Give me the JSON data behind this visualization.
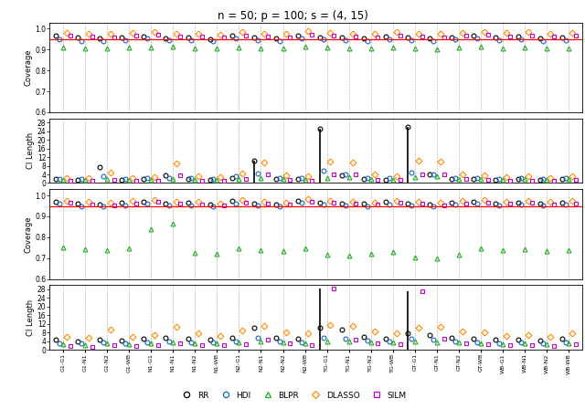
{
  "title": "n = 50; p = 100; s = (4, 15)",
  "xlabels": [
    "G1-G1",
    "G1-N1",
    "G1-N2",
    "G1-WB",
    "N1-G1",
    "N1-N1",
    "N1-N2",
    "N1-WB",
    "N2-G1",
    "N2-N1",
    "N2-N2",
    "N2-WB",
    "TG-G1",
    "TG-N1",
    "TG-N2",
    "TG-WB",
    "GT-G1",
    "GT-N1",
    "GT-N2",
    "GT-WB",
    "WB-G1",
    "WB-N1",
    "WB-N2",
    "WB-WB"
  ],
  "methods": [
    "RR",
    "HDI",
    "BLPR",
    "DLASSO",
    "SILM"
  ],
  "colors": [
    "black",
    "#1566c0",
    "#22aa22",
    "#ff8c00",
    "#cc00cc"
  ],
  "markers": [
    "o",
    "o",
    "^",
    "D",
    "s"
  ],
  "ref_line": 0.95,
  "coverage_ylim": [
    0.6,
    1.03
  ],
  "coverage_yticks": [
    0.6,
    0.7,
    0.8,
    0.9,
    1.0
  ],
  "cilength_ylim": [
    0,
    30
  ],
  "cilength_yticks": [
    0,
    4,
    8,
    12,
    16,
    20,
    24,
    28
  ],
  "panel1_coverage_RR": [
    0.966,
    0.957,
    0.952,
    0.958,
    0.962,
    0.955,
    0.96,
    0.951,
    0.965,
    0.958,
    0.952,
    0.968,
    0.96,
    0.957,
    0.955,
    0.962,
    0.958,
    0.953,
    0.96,
    0.965,
    0.958,
    0.962,
    0.955,
    0.96
  ],
  "panel1_coverage_HDI": [
    0.95,
    0.943,
    0.94,
    0.945,
    0.953,
    0.947,
    0.945,
    0.94,
    0.952,
    0.945,
    0.941,
    0.955,
    0.948,
    0.944,
    0.942,
    0.95,
    0.946,
    0.942,
    0.948,
    0.953,
    0.946,
    0.95,
    0.943,
    0.947
  ],
  "panel1_coverage_BLPR": [
    0.91,
    0.908,
    0.905,
    0.912,
    0.91,
    0.913,
    0.908,
    0.905,
    0.912,
    0.907,
    0.904,
    0.915,
    0.91,
    0.907,
    0.905,
    0.912,
    0.907,
    0.903,
    0.91,
    0.913,
    0.907,
    0.91,
    0.905,
    0.908
  ],
  "panel1_coverage_DLASSO": [
    0.98,
    0.978,
    0.975,
    0.982,
    0.985,
    0.978,
    0.976,
    0.973,
    0.983,
    0.977,
    0.974,
    0.988,
    0.982,
    0.978,
    0.975,
    0.983,
    0.978,
    0.974,
    0.981,
    0.986,
    0.979,
    0.983,
    0.977,
    0.98
  ],
  "panel1_coverage_SILM": [
    0.968,
    0.962,
    0.958,
    0.965,
    0.97,
    0.963,
    0.961,
    0.957,
    0.968,
    0.962,
    0.959,
    0.972,
    0.966,
    0.962,
    0.959,
    0.967,
    0.962,
    0.958,
    0.965,
    0.97,
    0.963,
    0.967,
    0.961,
    0.965
  ],
  "panel1_cilength_RR": [
    1.8,
    1.5,
    7.5,
    1.6,
    1.7,
    3.5,
    1.8,
    1.6,
    2.5,
    10.5,
    2.0,
    1.7,
    25.0,
    3.5,
    1.8,
    1.6,
    26.0,
    3.8,
    1.9,
    1.7,
    1.6,
    1.8,
    1.5,
    2.0
  ],
  "panel1_cilength_HDI": [
    2.0,
    1.8,
    3.0,
    2.0,
    2.2,
    2.5,
    2.2,
    2.0,
    3.0,
    4.5,
    2.5,
    2.2,
    5.5,
    4.0,
    2.5,
    2.2,
    5.0,
    4.2,
    2.5,
    2.2,
    2.0,
    2.2,
    1.9,
    2.5
  ],
  "panel1_cilength_BLPR": [
    1.5,
    1.3,
    1.8,
    1.5,
    1.6,
    1.8,
    1.6,
    1.5,
    2.0,
    2.5,
    1.8,
    1.6,
    2.5,
    2.8,
    1.9,
    1.6,
    2.8,
    3.0,
    2.0,
    1.8,
    1.5,
    1.7,
    1.4,
    1.8
  ],
  "panel1_cilength_DLASSO": [
    2.5,
    2.2,
    5.0,
    2.5,
    2.8,
    9.0,
    3.0,
    2.6,
    4.5,
    9.5,
    3.5,
    3.0,
    10.0,
    9.5,
    4.0,
    3.2,
    10.5,
    10.0,
    4.2,
    3.5,
    2.8,
    3.0,
    2.5,
    3.2
  ],
  "panel1_cilength_SILM": [
    1.0,
    0.9,
    1.5,
    1.0,
    1.1,
    3.5,
    1.2,
    1.0,
    1.8,
    4.0,
    1.5,
    1.2,
    4.0,
    3.8,
    1.6,
    1.3,
    4.2,
    4.0,
    1.7,
    1.4,
    1.1,
    1.2,
    1.0,
    1.3
  ],
  "panel2_coverage_RR": [
    0.97,
    0.962,
    0.958,
    0.965,
    0.968,
    0.96,
    0.965,
    0.955,
    0.972,
    0.963,
    0.957,
    0.975,
    0.967,
    0.963,
    0.96,
    0.968,
    0.963,
    0.958,
    0.965,
    0.97,
    0.963,
    0.967,
    0.961,
    0.965
  ],
  "panel2_coverage_HDI": [
    0.96,
    0.95,
    0.947,
    0.953,
    0.962,
    0.954,
    0.952,
    0.947,
    0.962,
    0.952,
    0.948,
    0.965,
    0.957,
    0.952,
    0.949,
    0.958,
    0.953,
    0.949,
    0.956,
    0.962,
    0.954,
    0.958,
    0.951,
    0.955
  ],
  "panel2_coverage_BLPR": [
    0.75,
    0.742,
    0.738,
    0.745,
    0.84,
    0.863,
    0.725,
    0.72,
    0.745,
    0.738,
    0.733,
    0.748,
    0.715,
    0.71,
    0.72,
    0.73,
    0.705,
    0.7,
    0.715,
    0.745,
    0.738,
    0.742,
    0.735,
    0.74
  ],
  "panel2_coverage_DLASSO": [
    0.975,
    0.968,
    0.965,
    0.972,
    0.978,
    0.97,
    0.968,
    0.963,
    0.978,
    0.968,
    0.964,
    0.982,
    0.975,
    0.97,
    0.967,
    0.975,
    0.97,
    0.965,
    0.972,
    0.978,
    0.97,
    0.975,
    0.968,
    0.972
  ],
  "panel2_coverage_SILM": [
    0.965,
    0.958,
    0.954,
    0.961,
    0.968,
    0.96,
    0.958,
    0.953,
    0.967,
    0.959,
    0.955,
    0.97,
    0.964,
    0.959,
    0.956,
    0.964,
    0.959,
    0.954,
    0.962,
    0.967,
    0.96,
    0.964,
    0.958,
    0.962
  ],
  "panel2_cilength_RR": [
    4.5,
    4.0,
    4.5,
    4.2,
    5.0,
    5.5,
    5.0,
    4.8,
    5.5,
    10.0,
    5.5,
    5.0,
    10.0,
    9.5,
    5.8,
    5.2,
    7.5,
    7.0,
    5.5,
    5.0,
    4.5,
    4.8,
    4.2,
    5.0
  ],
  "panel2_cilength_HDI": [
    3.0,
    2.8,
    3.2,
    3.0,
    3.5,
    3.8,
    3.5,
    3.2,
    4.0,
    5.5,
    4.0,
    3.5,
    5.5,
    5.0,
    4.2,
    3.8,
    5.0,
    4.8,
    4.0,
    3.5,
    3.0,
    3.2,
    2.9,
    3.5
  ],
  "panel2_cilength_BLPR": [
    2.5,
    2.2,
    2.8,
    2.5,
    3.0,
    3.5,
    3.0,
    2.8,
    3.5,
    4.0,
    3.2,
    3.0,
    4.0,
    3.8,
    3.5,
    3.2,
    3.8,
    3.5,
    3.2,
    3.0,
    2.5,
    2.8,
    2.4,
    3.0
  ],
  "panel2_cilength_DLASSO": [
    6.0,
    5.5,
    9.5,
    6.0,
    7.0,
    10.5,
    7.5,
    6.5,
    9.0,
    11.0,
    8.0,
    7.5,
    11.5,
    11.0,
    8.5,
    7.8,
    10.0,
    10.5,
    8.5,
    8.0,
    6.5,
    7.0,
    6.0,
    7.5
  ],
  "panel2_cilength_SILM": [
    1.8,
    1.5,
    2.0,
    1.8,
    2.0,
    3.0,
    2.2,
    2.0,
    2.5,
    4.5,
    2.8,
    2.2,
    28.5,
    4.5,
    2.8,
    2.4,
    27.0,
    5.0,
    3.0,
    2.6,
    2.0,
    2.2,
    1.8,
    2.5
  ],
  "panel1_rr_vline_idx": [
    12,
    16
  ],
  "panel2_rr_vline_idx": [
    12,
    16
  ]
}
